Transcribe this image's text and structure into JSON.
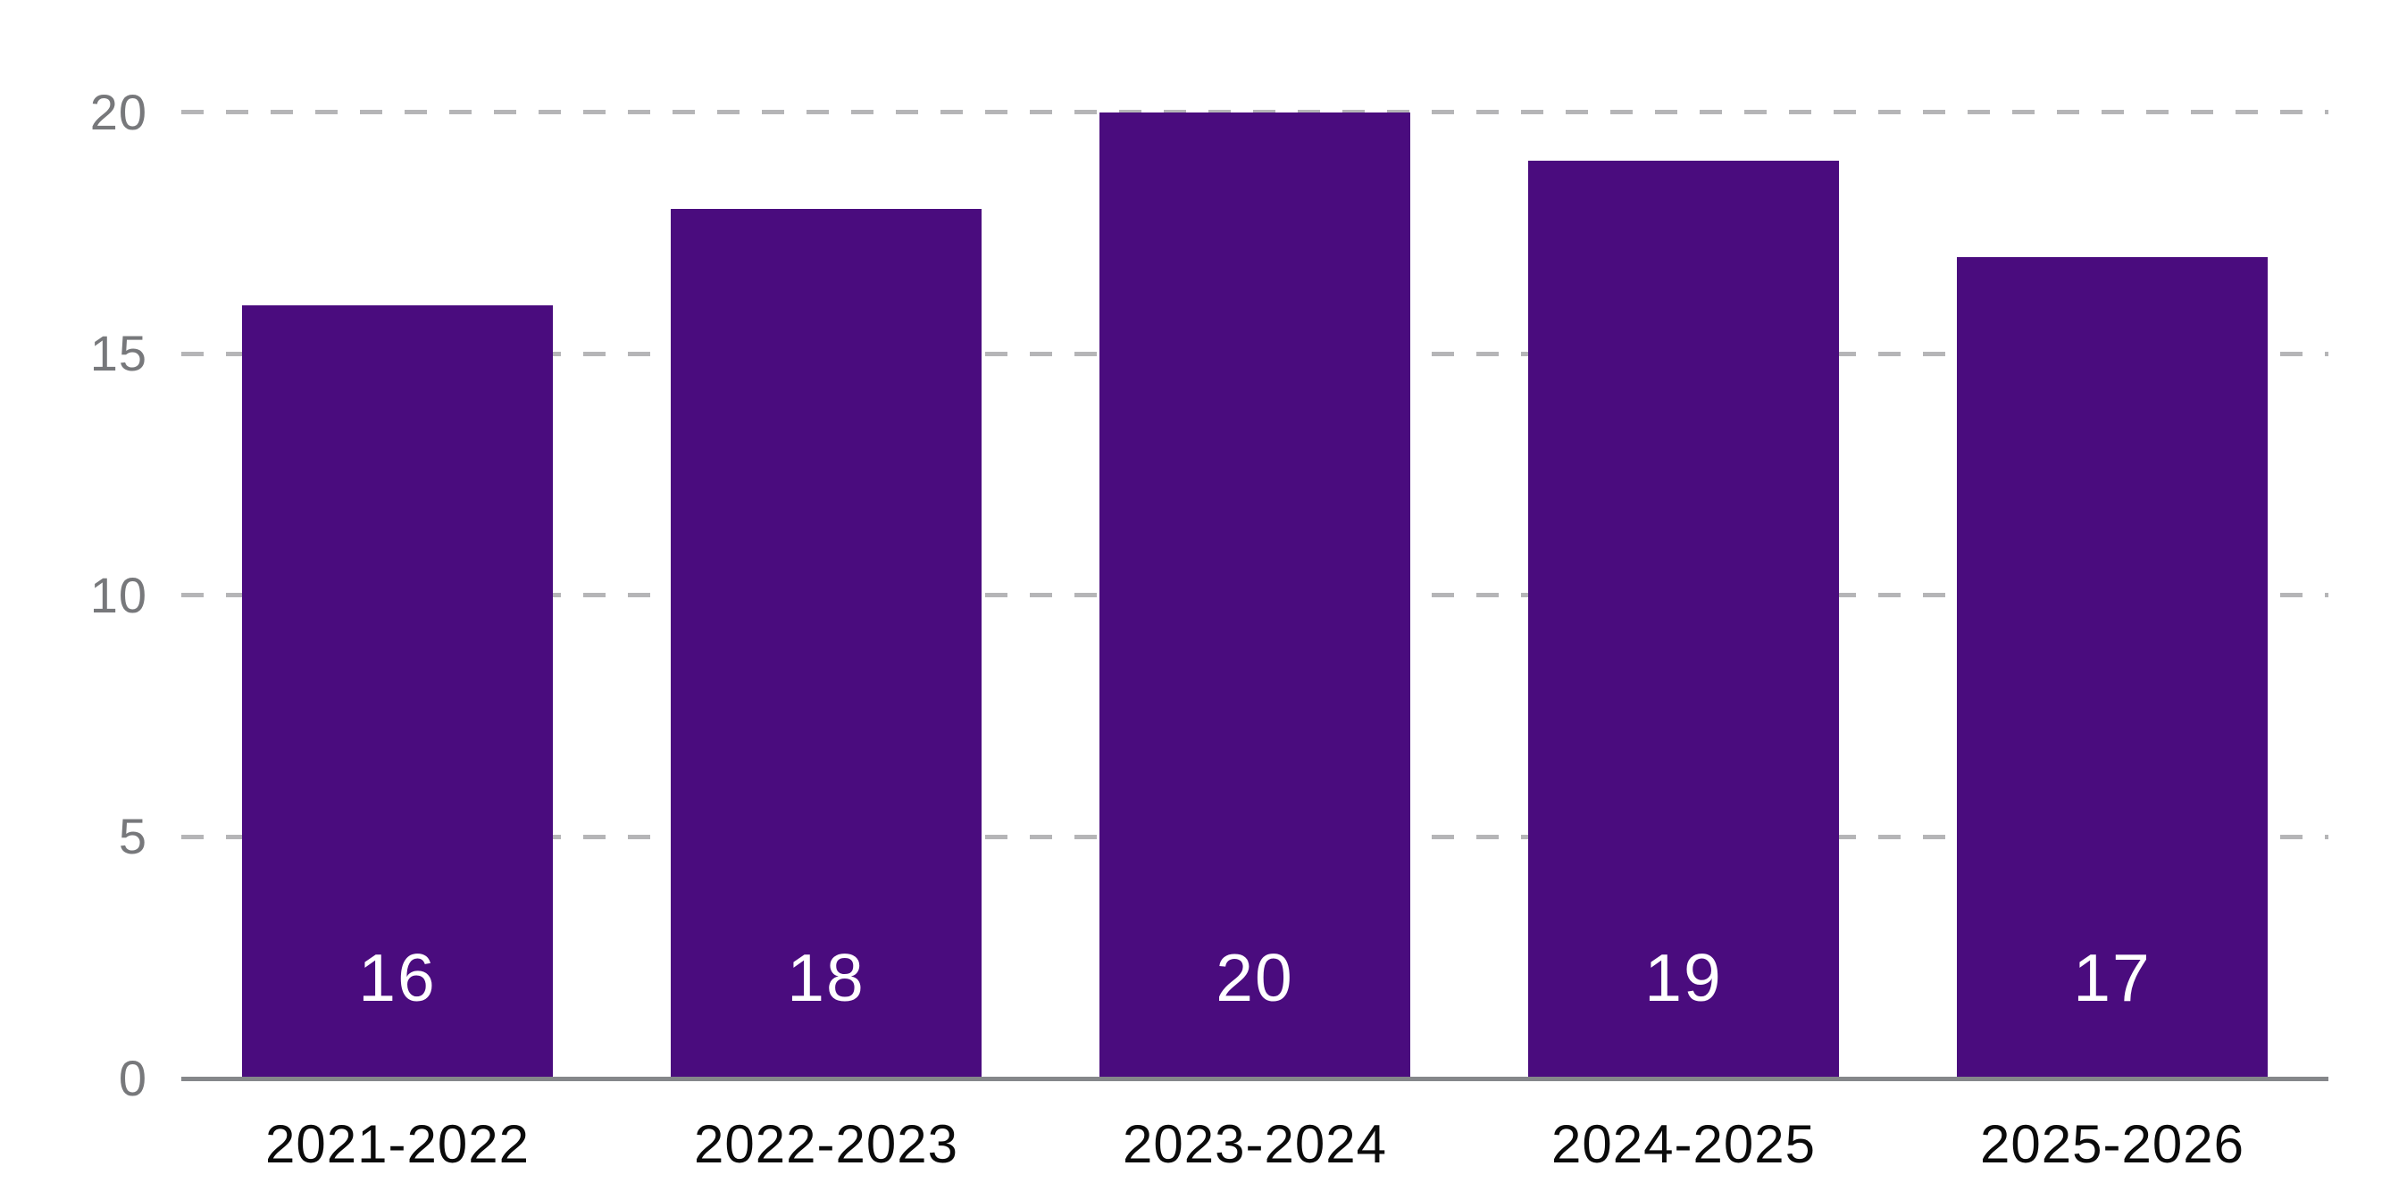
{
  "chart_data": {
    "type": "bar",
    "categories": [
      "2021-2022",
      "2022-2023",
      "2023-2024",
      "2024-2025",
      "2025-2026"
    ],
    "values": [
      16,
      18,
      20,
      19,
      17
    ],
    "value_labels": [
      "16",
      "18",
      "20",
      "19",
      "17"
    ],
    "ytick_labels": [
      "0",
      "5",
      "10",
      "15",
      "20"
    ],
    "yticks": [
      0,
      5,
      10,
      15,
      20
    ],
    "ylim": [
      0,
      20
    ],
    "title": "",
    "xlabel": "",
    "ylabel": "",
    "legend": "none",
    "grid": "horizontal dashed, ticks 5/10/15/20, solid baseline at 0",
    "colors": {
      "bar": "#4A0C7E",
      "value_label": "#FFFFFF",
      "gridline": "#B5B5B7",
      "axis_line": "#85878A",
      "ytick_label": "#77787B",
      "xtick_label": "#0B0B0B",
      "background": "#FFFFFF"
    }
  }
}
